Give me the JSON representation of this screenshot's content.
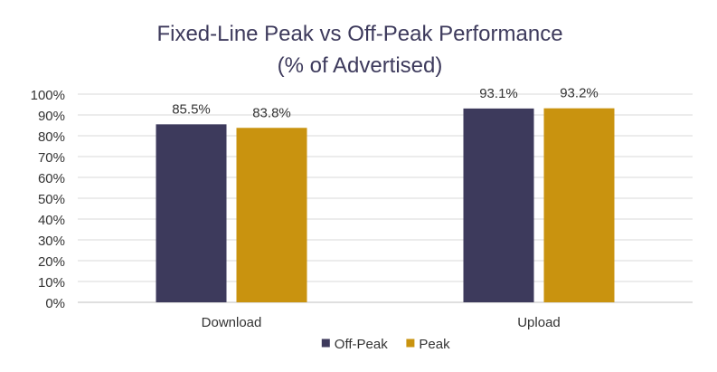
{
  "chart_data": {
    "type": "bar",
    "title": "Fixed-Line Peak vs Off-Peak Performance",
    "subtitle": "(% of Advertised)",
    "categories": [
      "Download",
      "Upload"
    ],
    "series": [
      {
        "name": "Off-Peak",
        "values": [
          85.5,
          93.1
        ],
        "labels": [
          "85.5%",
          "93.1%"
        ],
        "color": "#3d3a5c"
      },
      {
        "name": "Peak",
        "values": [
          83.8,
          93.2
        ],
        "labels": [
          "83.8%",
          "93.2%"
        ],
        "color": "#c9930f"
      }
    ],
    "ylim": [
      0,
      100
    ],
    "yticks": [
      0,
      10,
      20,
      30,
      40,
      50,
      60,
      70,
      80,
      90,
      100
    ],
    "ytick_labels": [
      "0%",
      "10%",
      "20%",
      "30%",
      "40%",
      "50%",
      "60%",
      "70%",
      "80%",
      "90%",
      "100%"
    ],
    "grid": true,
    "legend_position": "bottom-center"
  },
  "colors": {
    "title": "#3d3a5c",
    "text": "#333333",
    "grid": "#d9d9d9",
    "axis": "#bfbfbf"
  }
}
